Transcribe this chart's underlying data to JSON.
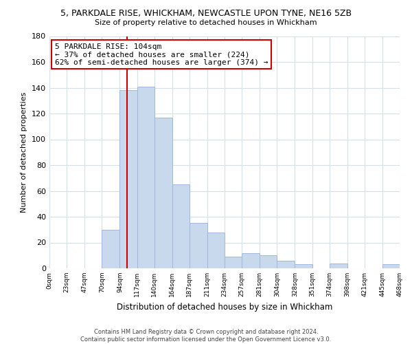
{
  "title": "5, PARKDALE RISE, WHICKHAM, NEWCASTLE UPON TYNE, NE16 5ZB",
  "subtitle": "Size of property relative to detached houses in Whickham",
  "xlabel": "Distribution of detached houses by size in Whickham",
  "ylabel": "Number of detached properties",
  "footer_line1": "Contains HM Land Registry data © Crown copyright and database right 2024.",
  "footer_line2": "Contains public sector information licensed under the Open Government Licence v3.0.",
  "bar_edges": [
    0,
    23,
    47,
    70,
    94,
    117,
    140,
    164,
    187,
    211,
    234,
    257,
    281,
    304,
    328,
    351,
    374,
    398,
    421,
    445,
    468
  ],
  "bar_heights": [
    0,
    0,
    0,
    30,
    138,
    141,
    117,
    65,
    35,
    28,
    9,
    12,
    10,
    6,
    3,
    0,
    4,
    0,
    0,
    3
  ],
  "bar_color": "#c8d9ed",
  "bar_edgecolor": "#a0b8d8",
  "property_line_x": 104,
  "property_line_color": "#cc0000",
  "annotation_line1": "5 PARKDALE RISE: 104sqm",
  "annotation_line2": "← 37% of detached houses are smaller (224)",
  "annotation_line3": "62% of semi-detached houses are larger (374) →",
  "annotation_box_color": "#ffffff",
  "annotation_box_edgecolor": "#cc0000",
  "ylim": [
    0,
    180
  ],
  "tick_labels": [
    "0sqm",
    "23sqm",
    "47sqm",
    "70sqm",
    "94sqm",
    "117sqm",
    "140sqm",
    "164sqm",
    "187sqm",
    "211sqm",
    "234sqm",
    "257sqm",
    "281sqm",
    "304sqm",
    "328sqm",
    "351sqm",
    "374sqm",
    "398sqm",
    "421sqm",
    "445sqm",
    "468sqm"
  ],
  "background_color": "#ffffff",
  "grid_color": "#d4dfe8"
}
